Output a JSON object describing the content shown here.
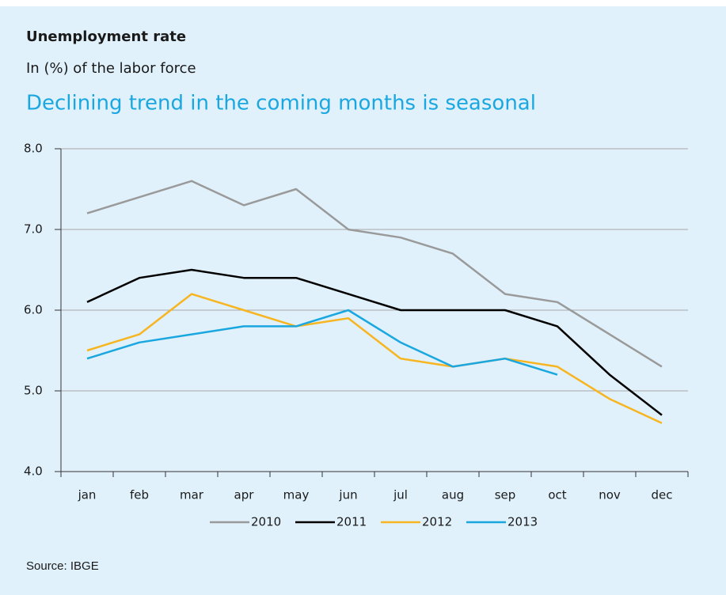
{
  "chart_data": {
    "type": "line",
    "title": "Unemployment rate",
    "subtitle": "In (%) of the labor force",
    "headline": "Declining trend in the coming months is seasonal",
    "source": "Source: IBGE",
    "categories": [
      "jan",
      "feb",
      "mar",
      "apr",
      "may",
      "jun",
      "jul",
      "aug",
      "sep",
      "oct",
      "nov",
      "dec"
    ],
    "series": [
      {
        "name": "2010",
        "color": "#9a9a9a",
        "values": [
          7.2,
          7.4,
          7.6,
          7.3,
          7.5,
          7.0,
          6.9,
          6.7,
          6.2,
          6.1,
          5.7,
          5.3
        ]
      },
      {
        "name": "2011",
        "color": "#000000",
        "values": [
          6.1,
          6.4,
          6.5,
          6.4,
          6.4,
          6.2,
          6.0,
          6.0,
          6.0,
          5.8,
          5.2,
          4.7
        ]
      },
      {
        "name": "2012",
        "color": "#f7b521",
        "values": [
          5.5,
          5.7,
          6.2,
          6.0,
          5.8,
          5.9,
          5.4,
          5.3,
          5.4,
          5.3,
          4.9,
          4.6
        ]
      },
      {
        "name": "2013",
        "color": "#1aa7e0",
        "values": [
          5.4,
          5.6,
          5.7,
          5.8,
          5.8,
          6.0,
          5.6,
          5.3,
          5.4,
          5.2,
          null,
          null
        ]
      }
    ],
    "ylim": [
      4,
      8
    ],
    "yticks": [
      {
        "value": 4,
        "label": "4.0"
      },
      {
        "value": 5,
        "label": "5.0"
      },
      {
        "value": 6,
        "label": "6.0"
      },
      {
        "value": 7,
        "label": "7.0"
      },
      {
        "value": 8,
        "label": "8.0"
      }
    ],
    "grid": true,
    "legend": "bottom"
  }
}
